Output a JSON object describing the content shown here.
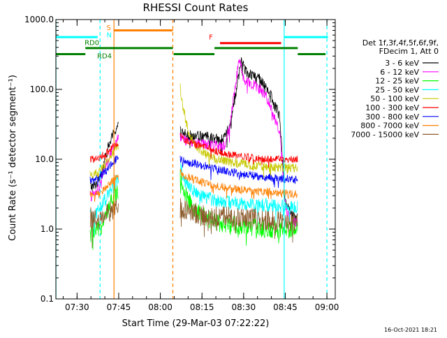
{
  "chart_data": {
    "type": "line",
    "title": "RHESSI Count Rates",
    "xlabel": "Start Time (29-Mar-03 07:22:22)",
    "ylabel": "Count Rate (s⁻¹ detector segment⁻¹)",
    "ylog": true,
    "ylim": [
      0.1,
      1000
    ],
    "ytick_labels": [
      "0.1",
      "1.0",
      "10.0",
      "100.0",
      "1000.0"
    ],
    "xlim_minutes": [
      442.37,
      543.0
    ],
    "xtick_labels": [
      "07:30",
      "07:45",
      "08:00",
      "08:15",
      "08:30",
      "08:45",
      "09:00"
    ],
    "xtick_minutes": [
      450,
      465,
      480,
      495,
      510,
      525,
      540
    ],
    "timestamp": "16-Oct-2021 18:21",
    "legend": {
      "placement": "right",
      "header": [
        "Det 1f,3f,4f,5f,6f,9f,",
        "FDecim 1, Att 0"
      ],
      "entries": [
        {
          "label": "3 - 6 keV",
          "color": "#000000"
        },
        {
          "label": "6 - 12 keV",
          "color": "#ff00ff"
        },
        {
          "label": "12 - 25 keV",
          "color": "#00ff00"
        },
        {
          "label": "25 - 50 keV",
          "color": "#00ffff"
        },
        {
          "label": "50 - 100 keV",
          "color": "#c8c800"
        },
        {
          "label": "100 - 300 keV",
          "color": "#ff0000"
        },
        {
          "label": "300 - 800 keV",
          "color": "#0000ff"
        },
        {
          "label": "800 - 7000 keV",
          "color": "#ff8000"
        },
        {
          "label": "7000 - 15000 keV",
          "color": "#8b5a2b"
        }
      ]
    },
    "annotation_bars": [
      {
        "label": "",
        "color": "#00ffff",
        "level": 560,
        "segments": [
          [
            442.4,
            457.4
          ],
          [
            524.6,
            540.4
          ]
        ]
      },
      {
        "label": "S",
        "label_color": "#ff8000",
        "color": "#ff8000",
        "level": 700,
        "segments": [
          [
            463.3,
            484.5
          ]
        ]
      },
      {
        "label": "N",
        "label_color": "#00ffff",
        "color": "#00ffff",
        "level": 560,
        "segments": []
      },
      {
        "label": "F",
        "label_color": "#ff0000",
        "color": "#ff0000",
        "level": 460,
        "segments": [
          [
            501.5,
            523.5
          ]
        ]
      },
      {
        "label": "RD0",
        "label_color": "#008000",
        "color": "#008000",
        "level": 390,
        "segments": [
          [
            453.0,
            484.5
          ],
          [
            499.5,
            529.5
          ]
        ]
      },
      {
        "label": "RD4",
        "label_color": "#008000",
        "color": "#008000",
        "level": 320,
        "segments": [
          [
            442.4,
            453.0
          ],
          [
            484.8,
            499.5
          ],
          [
            529.5,
            539.5
          ]
        ]
      }
    ],
    "vertical_lines": [
      {
        "minute": 442.4,
        "color": "#00ffff",
        "style": "solid"
      },
      {
        "minute": 458.3,
        "color": "#00ffff",
        "style": "dashed"
      },
      {
        "minute": 463.3,
        "color": "#ff8000",
        "style": "solid"
      },
      {
        "minute": 484.5,
        "color": "#ff8000",
        "style": "dashed"
      },
      {
        "minute": 524.6,
        "color": "#00ffff",
        "style": "solid"
      },
      {
        "minute": 540.0,
        "color": "#00ffff",
        "style": "dashed"
      }
    ],
    "series": [
      {
        "name": "3 - 6 keV",
        "color": "#000000",
        "noise": 0.08,
        "segments": [
          {
            "x": [
              454.5,
              456,
              457.5,
              459,
              460.5,
              462,
              463.5,
              465
            ],
            "y": [
              4.2,
              4.0,
              4.8,
              7.0,
              12.0,
              18.0,
              25.0,
              32.0
            ]
          },
          {
            "x": [
              487,
              488,
              490,
              493,
              496,
              499,
              501,
              503,
              505,
              507,
              509,
              511,
              513,
              516,
              519,
              521,
              523,
              524,
              525,
              527,
              529.5
            ],
            "y": [
              28.0,
              24.0,
              22.0,
              21.0,
              21.0,
              20.0,
              19.0,
              20.0,
              30.0,
              80.0,
              250.0,
              180.0,
              160.0,
              140.0,
              100.0,
              60.0,
              42.0,
              10.0,
              2.5,
              1.6,
              1.4
            ]
          }
        ]
      },
      {
        "name": "6 - 12 keV",
        "color": "#ff00ff",
        "noise": 0.08,
        "segments": [
          {
            "x": [
              454.5,
              456,
              457.5,
              459,
              460.5,
              462,
              463.5,
              465
            ],
            "y": [
              3.0,
              3.0,
              3.6,
              5.5,
              8.0,
              12.0,
              16.0,
              20.0
            ]
          },
          {
            "x": [
              487,
              488,
              490,
              493,
              496,
              499,
              501,
              503,
              505,
              507,
              508.5,
              510,
              513,
              516,
              519,
              521,
              523,
              524,
              525,
              527,
              529.5
            ],
            "y": [
              22.0,
              20.0,
              18.0,
              17.0,
              16.0,
              16.0,
              15.0,
              15.0,
              28.0,
              120.0,
              280.0,
              140.0,
              120.0,
              100.0,
              70.0,
              40.0,
              25.0,
              8.0,
              2.0,
              1.4,
              1.2
            ]
          }
        ]
      },
      {
        "name": "12 - 25 keV",
        "color": "#00ff00",
        "noise": 0.13,
        "segments": [
          {
            "x": [
              454.5,
              456,
              458,
              460,
              462,
              463.5,
              465
            ],
            "y": [
              0.8,
              0.9,
              1.0,
              1.4,
              2.2,
              3.0,
              3.8
            ]
          },
          {
            "x": [
              487,
              488,
              490,
              493,
              496,
              499,
              502,
              506,
              510,
              514,
              518,
              522,
              526,
              529.5
            ],
            "y": [
              6.0,
              4.0,
              2.6,
              1.8,
              1.5,
              1.3,
              1.2,
              1.15,
              1.1,
              1.05,
              1.0,
              1.0,
              1.0,
              1.0
            ]
          }
        ]
      },
      {
        "name": "25 - 50 keV",
        "color": "#00ffff",
        "noise": 0.1,
        "segments": [
          {
            "x": [
              454.5,
              456,
              458,
              460,
              462,
              463.5,
              465
            ],
            "y": [
              1.5,
              1.6,
              1.9,
              2.6,
              3.5,
              4.5,
              5.5
            ]
          },
          {
            "x": [
              487,
              488,
              490,
              493,
              496,
              499,
              502,
              506,
              510,
              514,
              518,
              522,
              526,
              529.5
            ],
            "y": [
              9.0,
              6.0,
              4.0,
              3.2,
              2.8,
              2.6,
              2.5,
              2.4,
              2.3,
              2.2,
              2.2,
              2.1,
              2.1,
              2.0
            ]
          }
        ]
      },
      {
        "name": "50 - 100 keV",
        "color": "#c8c800",
        "noise": 0.07,
        "segments": [
          {
            "x": [
              454.5,
              456,
              458,
              460,
              462,
              463.5,
              465
            ],
            "y": [
              6.0,
              6.0,
              6.5,
              8.0,
              11.0,
              14.0,
              16.0
            ]
          },
          {
            "x": [
              487,
              488,
              490,
              493,
              496,
              499,
              502,
              506,
              510,
              514,
              518,
              522,
              526,
              529.5
            ],
            "y": [
              120.0,
              60.0,
              25.0,
              15.0,
              12.0,
              10.5,
              9.5,
              9.0,
              8.5,
              8.0,
              7.8,
              7.5,
              7.5,
              7.3
            ]
          }
        ]
      },
      {
        "name": "100 - 300 keV",
        "color": "#ff0000",
        "noise": 0.05,
        "segments": [
          {
            "x": [
              454.5,
              456,
              458,
              460,
              462,
              463.5,
              465
            ],
            "y": [
              10.0,
              10.0,
              10.5,
              12.0,
              14.0,
              16.0,
              17.0
            ]
          },
          {
            "x": [
              487,
              488,
              490,
              493,
              496,
              499,
              502,
              506,
              510,
              514,
              518,
              522,
              526,
              529.5
            ],
            "y": [
              22.0,
              20.0,
              18.0,
              16.0,
              15.0,
              13.5,
              12.5,
              11.5,
              11.0,
              10.5,
              10.0,
              10.0,
              10.0,
              10.0
            ]
          }
        ]
      },
      {
        "name": "300 - 800 keV",
        "color": "#0000ff",
        "noise": 0.06,
        "segments": [
          {
            "x": [
              454.5,
              456,
              458,
              460,
              462,
              463.5,
              465
            ],
            "y": [
              5.0,
              5.0,
              5.5,
              6.5,
              8.0,
              9.5,
              10.5
            ]
          },
          {
            "x": [
              487,
              488,
              490,
              493,
              496,
              499,
              502,
              506,
              510,
              514,
              518,
              522,
              526,
              529.5
            ],
            "y": [
              10.0,
              9.5,
              9.0,
              8.5,
              8.0,
              7.5,
              7.0,
              6.5,
              6.0,
              5.8,
              5.5,
              5.3,
              5.2,
              5.0
            ]
          }
        ]
      },
      {
        "name": "800 - 7000 keV",
        "color": "#ff8000",
        "noise": 0.06,
        "segments": [
          {
            "x": [
              454.5,
              456,
              458,
              460,
              462,
              463.5,
              465
            ],
            "y": [
              3.0,
              3.0,
              3.2,
              3.8,
              4.5,
              5.2,
              5.8
            ]
          },
          {
            "x": [
              487,
              488,
              490,
              493,
              496,
              499,
              502,
              506,
              510,
              514,
              518,
              522,
              526,
              529.5
            ],
            "y": [
              6.5,
              6.0,
              5.5,
              5.0,
              4.5,
              4.2,
              4.0,
              3.8,
              3.6,
              3.5,
              3.4,
              3.3,
              3.2,
              3.1
            ]
          }
        ]
      },
      {
        "name": "7000 - 15000 keV",
        "color": "#8b5a2b",
        "noise": 0.15,
        "segments": [
          {
            "x": [
              454.5,
              456,
              458,
              460,
              462,
              463.5,
              465
            ],
            "y": [
              1.5,
              1.4,
              1.4,
              1.6,
              1.8,
              2.0,
              2.2
            ]
          },
          {
            "x": [
              487,
              490,
              495,
              500,
              505,
              510,
              515,
              520,
              525,
              529.5
            ],
            "y": [
              2.0,
              1.8,
              1.6,
              1.5,
              1.5,
              1.4,
              1.4,
              1.3,
              1.3,
              1.3
            ]
          }
        ]
      }
    ]
  }
}
